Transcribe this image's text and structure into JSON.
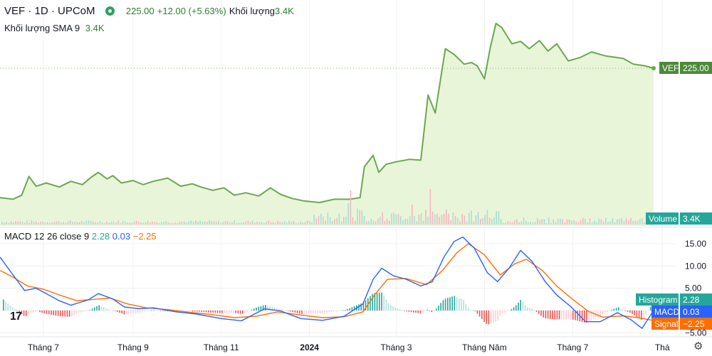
{
  "header": {
    "symbol": "VEF · 1D · UPCoM",
    "price": "225.00",
    "change": "+12.00 (+5.63%)",
    "volume_label": "Khối lượng",
    "volume_value": "3.4K",
    "sma_label": "Khối lượng SMA 9",
    "sma_value": "3.4K"
  },
  "macd_header": {
    "label": "MACD 12 26 close 9",
    "histogram": "2.28",
    "macd": "0.03",
    "signal": "−2.25"
  },
  "colors": {
    "price_line": "#6aa84f",
    "price_fill": "#e9f5d9",
    "vol_up": "#a6dfd6",
    "vol_down": "#f7b6bd",
    "hist_up": "#26a69a",
    "hist_down": "#ef5350",
    "macd": "#2962ff",
    "signal": "#ff6d00",
    "grid": "#f0f0f0"
  },
  "chart_data": {
    "type": "line",
    "symbol": "VEF",
    "price_axis_label": "225.00",
    "price_series": [
      [
        "2023-06-01",
        66
      ],
      [
        "2023-06-10",
        64
      ],
      [
        "2023-06-16",
        69
      ],
      [
        "2023-06-21",
        92
      ],
      [
        "2023-06-26",
        80
      ],
      [
        "2023-07-03",
        84
      ],
      [
        "2023-07-12",
        79
      ],
      [
        "2023-07-20",
        86
      ],
      [
        "2023-07-28",
        82
      ],
      [
        "2023-08-03",
        91
      ],
      [
        "2023-08-08",
        97
      ],
      [
        "2023-08-14",
        89
      ],
      [
        "2023-08-18",
        93
      ],
      [
        "2023-08-24",
        84
      ],
      [
        "2023-09-01",
        87
      ],
      [
        "2023-09-08",
        82
      ],
      [
        "2023-09-15",
        86
      ],
      [
        "2023-09-25",
        90
      ],
      [
        "2023-10-04",
        80
      ],
      [
        "2023-10-12",
        83
      ],
      [
        "2023-10-18",
        79
      ],
      [
        "2023-10-26",
        75
      ],
      [
        "2023-11-03",
        78
      ],
      [
        "2023-11-10",
        69
      ],
      [
        "2023-11-18",
        72
      ],
      [
        "2023-11-27",
        68
      ],
      [
        "2023-12-05",
        78
      ],
      [
        "2023-12-12",
        70
      ],
      [
        "2023-12-20",
        65
      ],
      [
        "2023-12-28",
        62
      ],
      [
        "2024-01-08",
        60
      ],
      [
        "2024-01-18",
        64
      ],
      [
        "2024-01-29",
        64
      ],
      [
        "2024-02-05",
        66
      ],
      [
        "2024-02-08",
        104
      ],
      [
        "2024-02-14",
        118
      ],
      [
        "2024-02-18",
        97
      ],
      [
        "2024-02-23",
        107
      ],
      [
        "2024-03-01",
        110
      ],
      [
        "2024-03-10",
        113
      ],
      [
        "2024-03-18",
        112
      ],
      [
        "2024-03-23",
        192
      ],
      [
        "2024-03-28",
        170
      ],
      [
        "2024-04-04",
        249
      ],
      [
        "2024-04-10",
        242
      ],
      [
        "2024-04-17",
        230
      ],
      [
        "2024-04-22",
        232
      ],
      [
        "2024-04-26",
        228
      ],
      [
        "2024-05-01",
        212
      ],
      [
        "2024-05-05",
        250
      ],
      [
        "2024-05-09",
        280
      ],
      [
        "2024-05-13",
        275
      ],
      [
        "2024-05-20",
        255
      ],
      [
        "2024-05-26",
        258
      ],
      [
        "2024-06-01",
        249
      ],
      [
        "2024-06-08",
        259
      ],
      [
        "2024-06-14",
        246
      ],
      [
        "2024-06-20",
        255
      ],
      [
        "2024-06-28",
        234
      ],
      [
        "2024-07-06",
        238
      ],
      [
        "2024-07-14",
        245
      ],
      [
        "2024-07-24",
        240
      ],
      [
        "2024-08-05",
        237
      ],
      [
        "2024-08-12",
        230
      ],
      [
        "2024-08-20",
        228
      ],
      [
        "2024-08-26",
        225
      ]
    ],
    "macd_series": [
      [
        "2023-06-01",
        12
      ],
      [
        "2023-06-10",
        8
      ],
      [
        "2023-06-18",
        4.5
      ],
      [
        "2023-06-26",
        5
      ],
      [
        "2023-07-03",
        3.8
      ],
      [
        "2023-07-12",
        2.2
      ],
      [
        "2023-07-20",
        1.2
      ],
      [
        "2023-08-01",
        2.4
      ],
      [
        "2023-08-08",
        3.8
      ],
      [
        "2023-08-18",
        2.6
      ],
      [
        "2023-08-26",
        0.8
      ],
      [
        "2023-09-05",
        0.4
      ],
      [
        "2023-09-15",
        0.6
      ],
      [
        "2023-10-01",
        -0.3
      ],
      [
        "2023-10-15",
        -0.8
      ],
      [
        "2023-11-01",
        -1.8
      ],
      [
        "2023-11-15",
        -2.3
      ],
      [
        "2023-12-01",
        0.4
      ],
      [
        "2023-12-12",
        -0.1
      ],
      [
        "2023-12-26",
        -1.8
      ],
      [
        "2024-01-10",
        -2.2
      ],
      [
        "2024-01-25",
        -1.3
      ],
      [
        "2024-02-07",
        1.5
      ],
      [
        "2024-02-14",
        7
      ],
      [
        "2024-02-20",
        9.5
      ],
      [
        "2024-02-28",
        7.8
      ],
      [
        "2024-03-08",
        7
      ],
      [
        "2024-03-18",
        5.5
      ],
      [
        "2024-03-26",
        6.5
      ],
      [
        "2024-04-03",
        12
      ],
      [
        "2024-04-10",
        15.5
      ],
      [
        "2024-04-16",
        16.5
      ],
      [
        "2024-04-24",
        14
      ],
      [
        "2024-05-03",
        8.5
      ],
      [
        "2024-05-10",
        6.5
      ],
      [
        "2024-05-18",
        9.5
      ],
      [
        "2024-05-26",
        13.5
      ],
      [
        "2024-06-03",
        11
      ],
      [
        "2024-06-12",
        6.5
      ],
      [
        "2024-06-20",
        3.5
      ],
      [
        "2024-06-30",
        0.8
      ],
      [
        "2024-07-10",
        -2.5
      ],
      [
        "2024-07-20",
        -2.5
      ],
      [
        "2024-08-01",
        -0.5
      ],
      [
        "2024-08-10",
        -2
      ],
      [
        "2024-08-18",
        -4
      ],
      [
        "2024-08-26",
        0.03
      ]
    ],
    "signal_series": [
      [
        "2023-06-01",
        9
      ],
      [
        "2023-06-10",
        7.5
      ],
      [
        "2023-06-20",
        5.5
      ],
      [
        "2023-07-01",
        4.8
      ],
      [
        "2023-07-12",
        3.5
      ],
      [
        "2023-07-24",
        2.2
      ],
      [
        "2023-08-05",
        2.5
      ],
      [
        "2023-08-16",
        2.8
      ],
      [
        "2023-08-28",
        1.5
      ],
      [
        "2023-09-10",
        0.6
      ],
      [
        "2023-09-25",
        0.2
      ],
      [
        "2023-10-10",
        -0.4
      ],
      [
        "2023-10-25",
        -0.9
      ],
      [
        "2023-11-10",
        -1.6
      ],
      [
        "2023-11-25",
        -1.3
      ],
      [
        "2023-12-10",
        -0.3
      ],
      [
        "2023-12-26",
        -1.0
      ],
      [
        "2024-01-10",
        -1.6
      ],
      [
        "2024-01-25",
        -1.4
      ],
      [
        "2024-02-07",
        -0.3
      ],
      [
        "2024-02-15",
        3.5
      ],
      [
        "2024-02-24",
        7
      ],
      [
        "2024-03-08",
        7.2
      ],
      [
        "2024-03-22",
        5.8
      ],
      [
        "2024-04-02",
        9
      ],
      [
        "2024-04-12",
        13
      ],
      [
        "2024-04-20",
        15
      ],
      [
        "2024-05-01",
        12.5
      ],
      [
        "2024-05-12",
        8
      ],
      [
        "2024-05-22",
        10.5
      ],
      [
        "2024-05-30",
        11.5
      ],
      [
        "2024-06-10",
        9
      ],
      [
        "2024-06-20",
        5.5
      ],
      [
        "2024-07-01",
        2.5
      ],
      [
        "2024-07-12",
        -0.2
      ],
      [
        "2024-07-22",
        -1.5
      ],
      [
        "2024-08-05",
        -1.2
      ],
      [
        "2024-08-15",
        -1.6
      ],
      [
        "2024-08-26",
        -2.25
      ]
    ],
    "x_tick_labels": [
      [
        "2023-07-01",
        "Tháng 7"
      ],
      [
        "2023-09-01",
        "Tháng 9"
      ],
      [
        "2023-11-01",
        "Tháng 11"
      ],
      [
        "2024-01-01",
        "2024"
      ],
      [
        "2024-03-01",
        "Tháng 3"
      ],
      [
        "2024-05-01",
        "Tháng Năm"
      ],
      [
        "2024-07-01",
        "Tháng 7"
      ],
      [
        "2024-09-01",
        "Thá"
      ]
    ],
    "macd_y_ticks": [
      "15.00",
      "10.00",
      "5.00",
      "0.00",
      "−5.00"
    ],
    "macd_y_tick_values": [
      15,
      10,
      5,
      0,
      -5
    ],
    "macd_ylim": [
      -6,
      18
    ],
    "labels": {
      "volume": "Volume",
      "volume_value": "3.4K",
      "histogram": "Histogram",
      "histogram_value": "2.28",
      "macd": "MACD",
      "macd_value": "0.03",
      "signal": "Signal",
      "signal_value": "−2.25"
    }
  }
}
